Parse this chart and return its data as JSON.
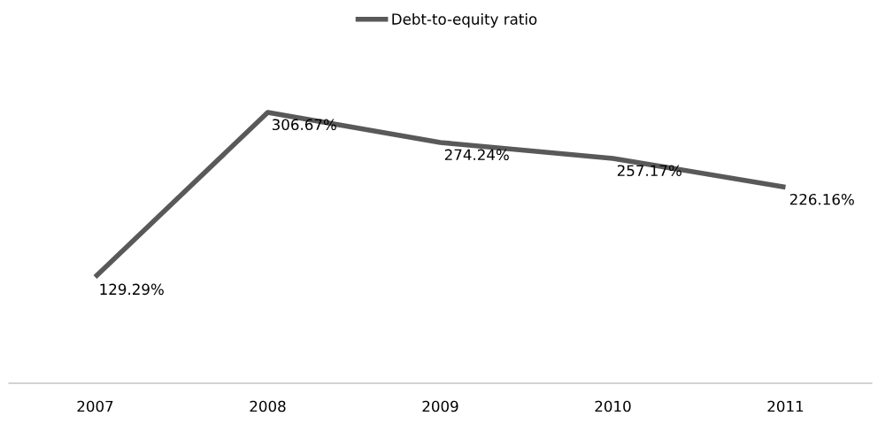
{
  "chart_data": {
    "type": "line",
    "categories": [
      "2007",
      "2008",
      "2009",
      "2010",
      "2011"
    ],
    "series": [
      {
        "name": "Debt-to-equity ratio",
        "color": "#595959",
        "values": [
          129.29,
          306.67,
          274.24,
          257.17,
          226.16
        ],
        "value_labels": [
          "129.29%",
          "306.67%",
          "274.24%",
          "257.17%",
          "226.16%"
        ]
      }
    ],
    "legend": "top",
    "grid": false,
    "marker": "none",
    "line_style": "solid"
  }
}
